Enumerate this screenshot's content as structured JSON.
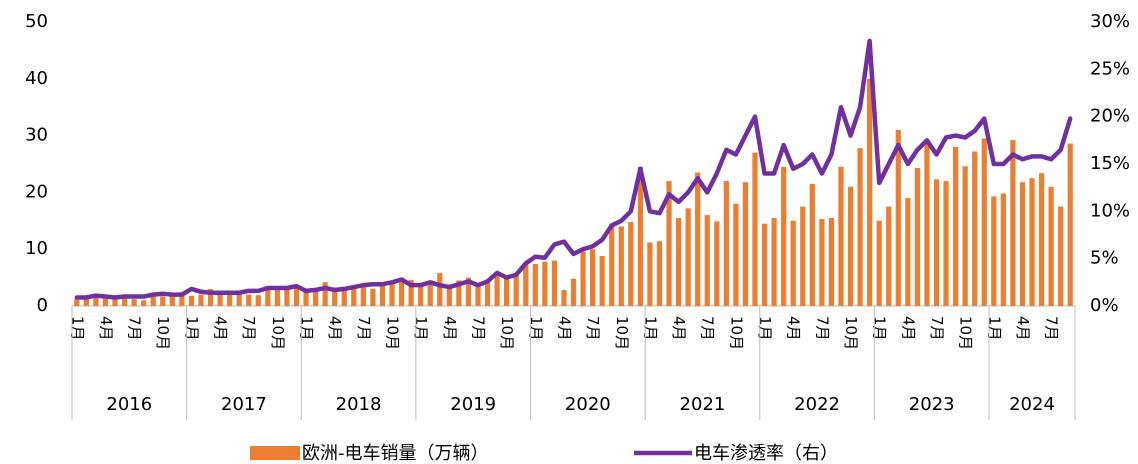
{
  "chart_data": {
    "type": "bar_line",
    "categories": [
      "1月",
      null,
      null,
      "4月",
      null,
      null,
      "7月",
      null,
      null,
      "10月",
      null,
      null,
      "1月",
      null,
      null,
      "4月",
      null,
      null,
      "7月",
      null,
      null,
      "10月",
      null,
      null,
      "1月",
      null,
      null,
      "4月",
      null,
      null,
      "7月",
      null,
      null,
      "10月",
      null,
      null,
      "1月",
      null,
      null,
      "4月",
      null,
      null,
      "7月",
      null,
      null,
      "10月",
      null,
      null,
      "1月",
      null,
      null,
      "4月",
      null,
      null,
      "7月",
      null,
      null,
      "10月",
      null,
      null,
      "1月",
      null,
      null,
      "4月",
      null,
      null,
      "7月",
      null,
      null,
      "10月",
      null,
      null,
      "1月",
      null,
      null,
      "4月",
      null,
      null,
      "7月",
      null,
      null,
      "10月",
      null,
      null,
      "1月",
      null,
      null,
      "4月",
      null,
      null,
      "7月",
      null,
      null,
      "10月",
      null,
      null,
      "1月",
      null,
      null,
      "4月",
      null,
      null,
      "7月",
      null,
      null
    ],
    "year_groups": [
      "2016",
      "2017",
      "2018",
      "2019",
      "2020",
      "2021",
      "2022",
      "2023",
      "2024"
    ],
    "series": [
      {
        "name": "欧洲-电车销量（万辆）",
        "type": "bar",
        "color": "#ed7d31",
        "values": [
          1.2,
          1.4,
          2.0,
          1.3,
          1.4,
          1.6,
          1.2,
          1.0,
          1.8,
          1.7,
          1.8,
          2.2,
          1.8,
          2.0,
          3.0,
          2.0,
          2.2,
          2.6,
          2.0,
          1.9,
          2.8,
          2.8,
          3.0,
          3.5,
          2.8,
          3.0,
          4.2,
          3.2,
          3.4,
          3.5,
          3.5,
          3.0,
          4.0,
          4.0,
          4.2,
          4.6,
          3.5,
          3.8,
          5.8,
          3.8,
          4.5,
          5.0,
          4.0,
          4.2,
          6.0,
          5.2,
          5.6,
          7.5,
          7.4,
          7.8,
          8.0,
          2.8,
          4.8,
          9.6,
          10.0,
          8.8,
          14.5,
          14.0,
          14.8,
          24.5,
          11.2,
          11.4,
          22.0,
          15.5,
          17.2,
          23.5,
          16.0,
          14.9,
          22.0,
          18.0,
          21.8,
          27.0,
          14.5,
          15.5,
          24.5,
          15.0,
          17.5,
          21.5,
          15.3,
          15.5,
          24.5,
          21.0,
          27.8,
          40.0,
          15.0,
          17.5,
          31.0,
          19.0,
          24.3,
          29.0,
          22.3,
          22.0,
          28.0,
          24.6,
          27.2,
          29.5,
          19.3,
          19.8,
          29.2,
          21.8,
          22.5,
          23.4,
          21.0,
          17.5,
          28.6
        ]
      },
      {
        "name": "电车渗透率（右）",
        "type": "line",
        "axis": "y2",
        "color": "#7030a0",
        "values": [
          0.9,
          0.9,
          1.1,
          1.0,
          0.9,
          1.0,
          1.0,
          1.0,
          1.2,
          1.3,
          1.2,
          1.2,
          1.8,
          1.5,
          1.4,
          1.4,
          1.4,
          1.4,
          1.6,
          1.6,
          1.9,
          1.9,
          1.9,
          2.1,
          1.6,
          1.7,
          1.9,
          1.7,
          1.8,
          2.0,
          2.2,
          2.3,
          2.3,
          2.5,
          2.8,
          2.2,
          2.2,
          2.5,
          2.2,
          2.0,
          2.3,
          2.6,
          2.2,
          2.6,
          3.5,
          3.0,
          3.3,
          4.5,
          5.2,
          5.1,
          6.5,
          6.8,
          5.5,
          6.0,
          6.3,
          7.0,
          8.5,
          9.0,
          10.0,
          14.5,
          10.0,
          9.8,
          11.8,
          11.0,
          12.0,
          13.5,
          12.0,
          14.0,
          16.5,
          16.0,
          18.0,
          20.0,
          14.0,
          14.0,
          17.0,
          14.5,
          15.0,
          16.0,
          14.0,
          16.0,
          21.0,
          18.0,
          21.0,
          28.0,
          13.0,
          15.0,
          17.0,
          15.0,
          16.5,
          17.5,
          16.0,
          17.8,
          18.0,
          17.8,
          18.5,
          19.8,
          15.0,
          15.0,
          16.0,
          15.5,
          15.8,
          15.8,
          15.5,
          16.5,
          19.8
        ]
      }
    ],
    "ylim": [
      0,
      50
    ],
    "yticks": [
      0,
      10,
      20,
      30,
      40,
      50
    ],
    "y2lim": [
      0,
      30
    ],
    "y2ticks": [
      {
        "value": 0,
        "label": "0%"
      },
      {
        "value": 5,
        "label": "5%"
      },
      {
        "value": 10,
        "label": "10%"
      },
      {
        "value": 15,
        "label": "15%"
      },
      {
        "value": 20,
        "label": "20%"
      },
      {
        "value": 25,
        "label": "25%"
      },
      {
        "value": 30,
        "label": "30%"
      }
    ],
    "grid": false,
    "legend": "bottom"
  }
}
